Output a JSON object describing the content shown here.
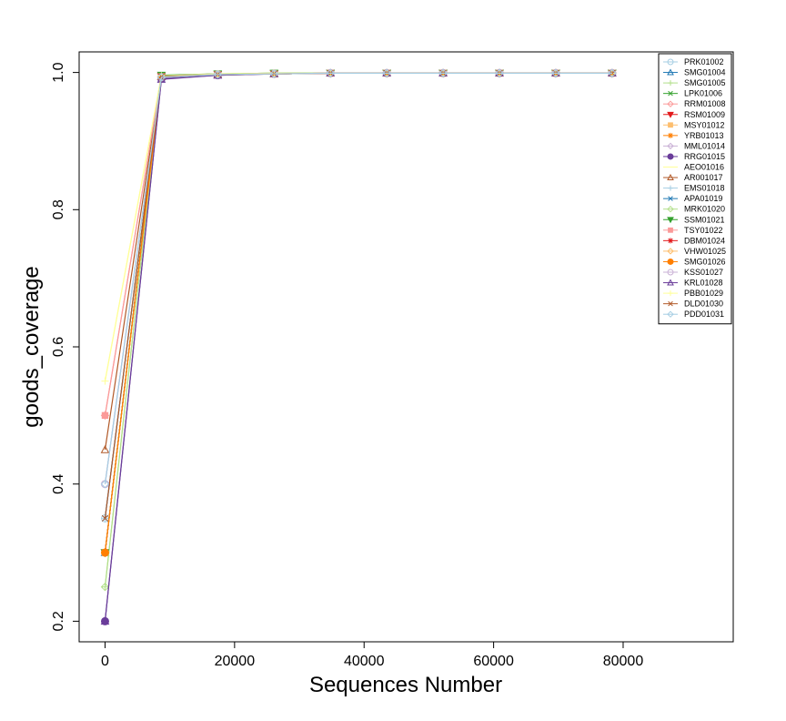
{
  "chart_data": {
    "type": "line",
    "title": "",
    "xlabel": "Sequences Number",
    "ylabel": "goods_coverage",
    "xlim": [
      -4000,
      97000
    ],
    "ylim": [
      0.17,
      1.03
    ],
    "x_ticks": [
      0,
      20000,
      40000,
      60000,
      80000
    ],
    "x_tick_labels": [
      "0",
      "20000",
      "40000",
      "60000",
      "80000"
    ],
    "y_ticks": [
      0.2,
      0.4,
      0.6,
      0.8,
      1.0
    ],
    "y_tick_labels": [
      "0.2",
      "0.4",
      "0.6",
      "0.8",
      "1.0"
    ],
    "x": [
      0,
      8700,
      17400,
      26100,
      34800,
      43500,
      52200,
      60900,
      69600,
      78300
    ],
    "legend_position": "top-right",
    "series": [
      {
        "name": "PRK01002",
        "color": "#a6cee3",
        "marker": "circle",
        "values": [
          0.35,
          0.993,
          0.997,
          0.998,
          0.999,
          0.999,
          0.999,
          0.999,
          0.999,
          0.999
        ]
      },
      {
        "name": "SMG01004",
        "color": "#1f78b4",
        "marker": "triangle",
        "values": [
          0.3,
          0.994,
          0.997,
          0.998,
          0.999,
          0.999,
          0.999,
          0.999,
          0.999,
          0.999
        ]
      },
      {
        "name": "SMG01005",
        "color": "#b2df8a",
        "marker": "plus",
        "values": [
          0.25,
          0.995,
          0.998,
          0.998,
          0.999,
          0.999,
          0.999,
          0.999,
          0.999,
          0.999
        ]
      },
      {
        "name": "LPK01006",
        "color": "#33a02c",
        "marker": "x",
        "values": [
          0.3,
          0.995,
          0.998,
          0.999,
          0.999,
          0.999,
          0.999,
          0.999,
          0.999,
          0.999
        ]
      },
      {
        "name": "RRM01008",
        "color": "#fb9a99",
        "marker": "diamond",
        "values": [
          0.5,
          0.994,
          0.997,
          0.998,
          0.999,
          0.999,
          0.999,
          0.999,
          0.999,
          0.999
        ]
      },
      {
        "name": "RSM01009",
        "color": "#e31a1c",
        "marker": "triangle-down",
        "values": [
          0.3,
          0.994,
          0.997,
          0.998,
          0.999,
          0.999,
          0.999,
          0.999,
          0.999,
          0.999
        ]
      },
      {
        "name": "MSY01012",
        "color": "#fdbf6f",
        "marker": "square",
        "values": [
          0.3,
          0.993,
          0.997,
          0.998,
          0.999,
          0.999,
          0.999,
          0.999,
          0.999,
          0.999
        ]
      },
      {
        "name": "YRB01013",
        "color": "#ff7f00",
        "marker": "star",
        "values": [
          0.3,
          0.993,
          0.997,
          0.998,
          0.999,
          0.999,
          0.999,
          0.999,
          0.999,
          0.999
        ]
      },
      {
        "name": "MML01014",
        "color": "#cab2d6",
        "marker": "diamond",
        "values": [
          0.4,
          0.993,
          0.997,
          0.998,
          0.999,
          0.999,
          0.999,
          0.999,
          0.999,
          0.999
        ]
      },
      {
        "name": "RRG01015",
        "color": "#6a3d9a",
        "marker": "circle-filled",
        "values": [
          0.2,
          0.991,
          0.996,
          0.998,
          0.999,
          0.999,
          0.999,
          0.999,
          0.999,
          0.999
        ]
      },
      {
        "name": "AEO01016",
        "color": "#ffff99",
        "marker": "none",
        "values": [
          0.55,
          0.995,
          0.998,
          0.999,
          0.999,
          0.999,
          0.999,
          0.999,
          0.999,
          0.999
        ]
      },
      {
        "name": "AR001017",
        "color": "#b15928",
        "marker": "triangle",
        "values": [
          0.45,
          0.994,
          0.997,
          0.998,
          0.999,
          0.999,
          0.999,
          0.999,
          0.999,
          0.999
        ]
      },
      {
        "name": "EMS01018",
        "color": "#a6cee3",
        "marker": "plus",
        "values": [
          0.35,
          0.993,
          0.997,
          0.998,
          0.999,
          0.999,
          0.999,
          0.999,
          0.999,
          0.999
        ]
      },
      {
        "name": "APA01019",
        "color": "#1f78b4",
        "marker": "x",
        "values": [
          0.35,
          0.993,
          0.997,
          0.998,
          0.999,
          0.999,
          0.999,
          0.999,
          0.999,
          0.999
        ]
      },
      {
        "name": "MRK01020",
        "color": "#b2df8a",
        "marker": "diamond",
        "values": [
          0.25,
          0.994,
          0.997,
          0.998,
          0.999,
          0.999,
          0.999,
          0.999,
          0.999,
          0.999
        ]
      },
      {
        "name": "SSM01021",
        "color": "#33a02c",
        "marker": "triangle-down",
        "values": [
          0.3,
          0.996,
          0.998,
          0.999,
          0.999,
          0.999,
          0.999,
          0.999,
          0.999,
          0.999
        ]
      },
      {
        "name": "TSY01022",
        "color": "#fb9a99",
        "marker": "square",
        "values": [
          0.5,
          0.994,
          0.997,
          0.998,
          0.999,
          0.999,
          0.999,
          0.999,
          0.999,
          0.999
        ]
      },
      {
        "name": "DBM01024",
        "color": "#e31a1c",
        "marker": "star",
        "values": [
          0.3,
          0.994,
          0.997,
          0.998,
          0.999,
          0.999,
          0.999,
          0.999,
          0.999,
          0.999
        ]
      },
      {
        "name": "VHW01025",
        "color": "#fdbf6f",
        "marker": "diamond",
        "values": [
          0.3,
          0.993,
          0.997,
          0.998,
          0.999,
          0.999,
          0.999,
          0.999,
          0.999,
          0.999
        ]
      },
      {
        "name": "SMG01026",
        "color": "#ff7f00",
        "marker": "circle-filled",
        "values": [
          0.3,
          0.993,
          0.997,
          0.998,
          0.999,
          0.999,
          0.999,
          0.999,
          0.999,
          0.999
        ]
      },
      {
        "name": "KSS01027",
        "color": "#cab2d6",
        "marker": "circle",
        "values": [
          0.4,
          0.993,
          0.997,
          0.998,
          0.999,
          0.999,
          0.999,
          0.999,
          0.999,
          0.999
        ]
      },
      {
        "name": "KRL01028",
        "color": "#6a3d9a",
        "marker": "triangle",
        "values": [
          0.2,
          0.99,
          0.996,
          0.998,
          0.999,
          0.999,
          0.999,
          0.999,
          0.999,
          0.999
        ]
      },
      {
        "name": "PBB01029",
        "color": "#ffff99",
        "marker": "plus",
        "values": [
          0.55,
          0.995,
          0.998,
          0.999,
          0.999,
          0.999,
          0.999,
          0.999,
          0.999,
          0.999
        ]
      },
      {
        "name": "DLD01030",
        "color": "#b15928",
        "marker": "x",
        "values": [
          0.35,
          0.994,
          0.997,
          0.998,
          0.999,
          0.999,
          0.999,
          0.999,
          0.999,
          0.999
        ]
      },
      {
        "name": "PDD01031",
        "color": "#a6cee3",
        "marker": "diamond",
        "values": [
          0.4,
          0.993,
          0.997,
          0.998,
          0.999,
          0.999,
          0.999,
          0.999,
          0.999,
          0.999
        ]
      }
    ]
  }
}
